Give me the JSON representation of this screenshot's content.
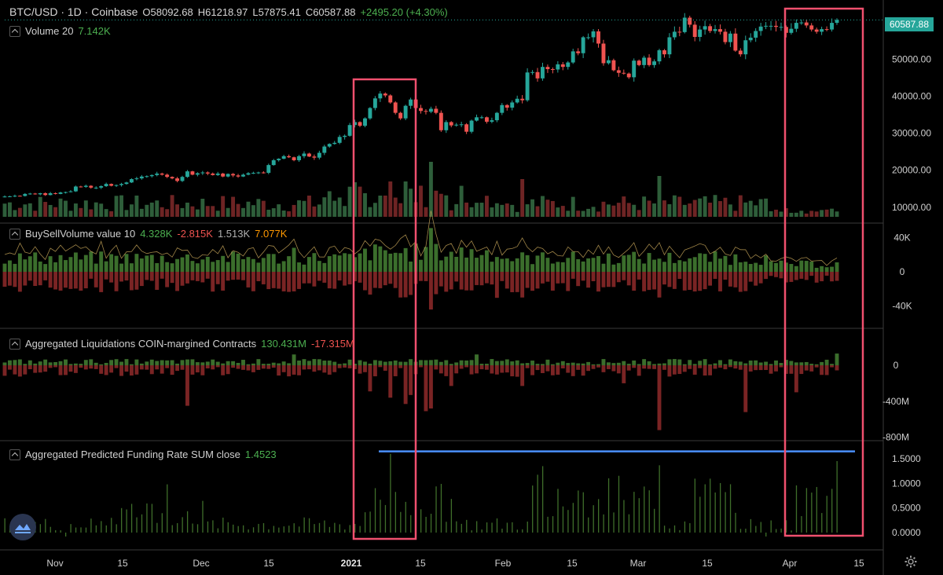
{
  "header": {
    "symbol": "BTC/USD · 1D · Coinbase",
    "open": "O58092.68",
    "high": "H61218.97",
    "low": "L57875.41",
    "close": "C60587.88",
    "change": "+2495.20 (+4.30%)"
  },
  "last_price": "60587.88",
  "panes": {
    "volume": {
      "label": "Volume 20",
      "value": "7.142K"
    },
    "bsv": {
      "label": "BuySellVolume value 10",
      "v1": "4.328K",
      "v2": "-2.815K",
      "v3": "1.513K",
      "v4": "7.077K"
    },
    "liq": {
      "label": "Aggregated Liquidations COIN-margined Contracts",
      "v1": "130.431M",
      "v2": "-17.315M"
    },
    "funding": {
      "label": "Aggregated Predicted Funding Rate SUM close",
      "value": "1.4523"
    }
  },
  "colors": {
    "up": "#26a69a",
    "down": "#ef5350",
    "vol_up": "#2e5e3a",
    "vol_down": "#6e2424",
    "highlight": "#f0506e",
    "blue_line": "#4a90ff",
    "funding": "#3f6e2a"
  },
  "chart_data": [
    {
      "type": "candlestick",
      "title": "BTC/USD · 1D · Coinbase",
      "x_ticks": [
        "Nov",
        "15",
        "Dec",
        "15",
        "2021",
        "15",
        "Feb",
        "15",
        "Mar",
        "15",
        "Apr",
        "15"
      ],
      "y_ticks": [
        "10000.00",
        "20000.00",
        "30000.00",
        "40000.00",
        "50000.00"
      ],
      "ylim": [
        7000,
        63000
      ],
      "dates_start": "2020-10-22",
      "close_series": [
        12900,
        12950,
        13100,
        13050,
        13600,
        13700,
        13500,
        13800,
        13300,
        13800,
        13600,
        14000,
        14100,
        14300,
        15600,
        15500,
        15800,
        15300,
        15300,
        15700,
        16300,
        15800,
        16000,
        16300,
        16700,
        17600,
        17800,
        18300,
        18400,
        18700,
        19100,
        18800,
        18200,
        17800,
        17100,
        18200,
        19700,
        18800,
        19200,
        19400,
        19100,
        18700,
        19100,
        18300,
        19000,
        18600,
        18300,
        18800,
        19200,
        19300,
        19400,
        19300,
        21400,
        22700,
        23100,
        23800,
        23500,
        22700,
        23800,
        24500,
        23700,
        23400,
        24700,
        26400,
        27100,
        27400,
        29000,
        29300,
        32200,
        33000,
        32000,
        34000,
        36800,
        39400,
        40700,
        40200,
        38300,
        35500,
        34000,
        37400,
        39100,
        36800,
        36000,
        35800,
        36600,
        35500,
        30800,
        33000,
        32100,
        32300,
        32400,
        30400,
        33400,
        34300,
        34300,
        33100,
        33500,
        35500,
        37600,
        36900,
        38300,
        39300,
        38900,
        46400,
        46500,
        44800,
        47900,
        47300,
        47200,
        48600,
        47900,
        49100,
        52100,
        51600,
        55900,
        55900,
        57500,
        54200,
        48900,
        49700,
        47000,
        46300,
        46100,
        45100,
        49600,
        48400,
        50400,
        48400,
        49400,
        52400,
        51300,
        55900,
        57400,
        57300,
        61200,
        59300,
        56000,
        58000,
        58900,
        57600,
        58100,
        57400,
        54600,
        56900,
        52300,
        51300,
        55100,
        55800,
        57600,
        58800,
        59000,
        59000,
        58700,
        58700,
        57100,
        58200,
        59800,
        59900,
        59100,
        58000,
        57400,
        58100,
        58000,
        59800,
        60587.88
      ]
    },
    {
      "type": "bar",
      "title": "Volume 20",
      "y_ticks": [],
      "series": [
        {
          "values": []
        }
      ]
    },
    {
      "type": "bar",
      "title": "BuySellVolume value 10",
      "y_ticks": [
        "40K",
        "0",
        "-40K"
      ],
      "ylim": [
        -55000,
        55000
      ]
    },
    {
      "type": "bar",
      "title": "Aggregated Liquidations COIN-margined Contracts",
      "y_ticks": [
        "0",
        "-400M",
        "-800M"
      ],
      "ylim": [
        -820000000,
        200000000
      ]
    },
    {
      "type": "bar",
      "title": "Aggregated Predicted Funding Rate SUM close",
      "y_ticks": [
        "1.5000",
        "1.0000",
        "0.5000",
        "0.0000"
      ],
      "ylim": [
        -0.15,
        1.75
      ],
      "horizontal_line": 1.65
    }
  ]
}
